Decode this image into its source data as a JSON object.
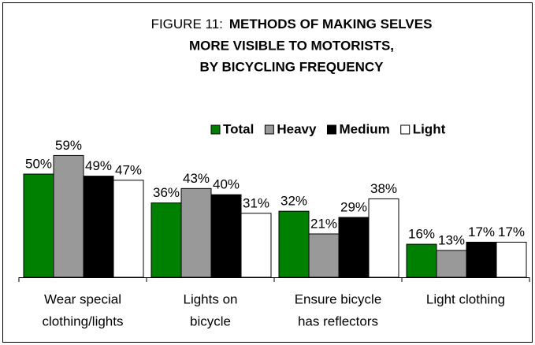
{
  "chart_data": {
    "type": "bar",
    "title_label": "FIGURE 11:",
    "title": [
      "METHODS OF MAKING SELVES",
      "MORE VISIBLE TO MOTORISTS,",
      "BY BICYCLING FREQUENCY"
    ],
    "categories": [
      [
        "Wear special",
        "clothing/lights"
      ],
      [
        "Lights on",
        "bicycle"
      ],
      [
        "Ensure bicycle",
        "has reflectors"
      ],
      [
        "Light clothing"
      ]
    ],
    "series": [
      {
        "name": "Total",
        "color": "#008000",
        "values": [
          50,
          36,
          32,
          16
        ],
        "value_labels": [
          "50%",
          "36%",
          "32%",
          "16%"
        ]
      },
      {
        "name": "Heavy",
        "color": "#999999",
        "values": [
          59,
          43,
          21,
          13
        ],
        "value_labels": [
          "59%",
          "43%",
          "21%",
          "13%"
        ]
      },
      {
        "name": "Medium",
        "color": "#000000",
        "values": [
          49,
          40,
          29,
          17
        ],
        "value_labels": [
          "49%",
          "40%",
          "29%",
          "17%"
        ]
      },
      {
        "name": "Light",
        "color": "#ffffff",
        "values": [
          47,
          31,
          38,
          17
        ],
        "value_labels": [
          "47%",
          "31%",
          "38%",
          "17%"
        ]
      }
    ],
    "legend": "top-right"
  }
}
